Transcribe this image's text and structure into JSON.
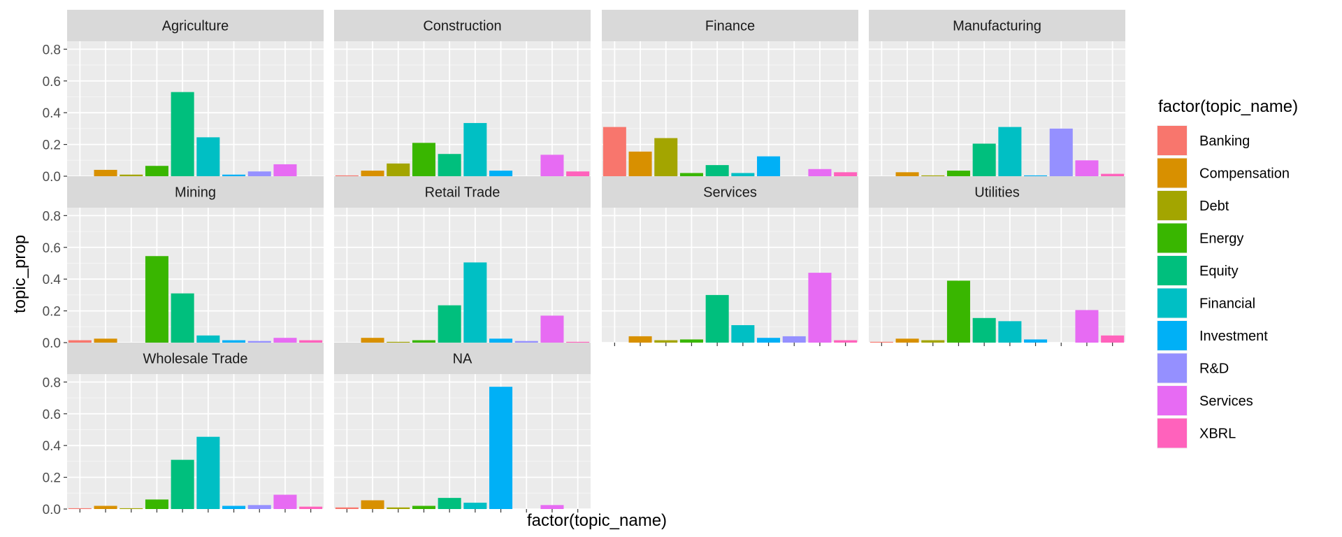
{
  "chart_data": {
    "type": "bar",
    "facet_by": "industry",
    "xlabel": "factor(topic_name)",
    "ylabel": "topic_prop",
    "ylim": [
      0,
      0.85
    ],
    "yticks": [
      "0.0",
      "0.2",
      "0.4",
      "0.6",
      "0.8"
    ],
    "ytick_values": [
      0,
      0.2,
      0.4,
      0.6,
      0.8
    ],
    "grid": true,
    "legend": {
      "title": "factor(topic_name)",
      "position": "right"
    },
    "categories": [
      "Banking",
      "Compensation",
      "Debt",
      "Energy",
      "Equity",
      "Financial",
      "Investment",
      "R&D",
      "Services",
      "XBRL"
    ],
    "colors": [
      "#F8766D",
      "#D89000",
      "#A3A500",
      "#39B600",
      "#00BF7D",
      "#00BFC4",
      "#00B0F6",
      "#9590FF",
      "#E76BF3",
      "#FF62BC"
    ],
    "facets": [
      {
        "name": "Agriculture",
        "values": [
          0.0,
          0.04,
          0.01,
          0.065,
          0.53,
          0.245,
          0.01,
          0.03,
          0.075,
          0.0
        ]
      },
      {
        "name": "Construction",
        "values": [
          0.005,
          0.035,
          0.08,
          0.21,
          0.14,
          0.335,
          0.035,
          0.0,
          0.135,
          0.03
        ]
      },
      {
        "name": "Finance",
        "values": [
          0.31,
          0.155,
          0.24,
          0.02,
          0.07,
          0.02,
          0.125,
          0.0,
          0.045,
          0.025
        ]
      },
      {
        "name": "Manufacturing",
        "values": [
          0.0,
          0.025,
          0.005,
          0.035,
          0.205,
          0.31,
          0.005,
          0.3,
          0.1,
          0.015
        ]
      },
      {
        "name": "Mining",
        "values": [
          0.015,
          0.025,
          0.0,
          0.545,
          0.31,
          0.045,
          0.015,
          0.01,
          0.03,
          0.015
        ]
      },
      {
        "name": "Retail Trade",
        "values": [
          0.0,
          0.03,
          0.005,
          0.015,
          0.235,
          0.505,
          0.025,
          0.01,
          0.17,
          0.005
        ]
      },
      {
        "name": "Services",
        "values": [
          0.0,
          0.04,
          0.015,
          0.02,
          0.3,
          0.11,
          0.03,
          0.04,
          0.44,
          0.015
        ]
      },
      {
        "name": "Utilities",
        "values": [
          0.005,
          0.025,
          0.015,
          0.39,
          0.155,
          0.135,
          0.02,
          0.0,
          0.205,
          0.045
        ]
      },
      {
        "name": "Wholesale Trade",
        "values": [
          0.005,
          0.02,
          0.005,
          0.06,
          0.31,
          0.455,
          0.02,
          0.025,
          0.09,
          0.015
        ]
      },
      {
        "name": "NA",
        "values": [
          0.01,
          0.055,
          0.01,
          0.02,
          0.07,
          0.04,
          0.77,
          0.0,
          0.025,
          0.0
        ]
      }
    ]
  }
}
